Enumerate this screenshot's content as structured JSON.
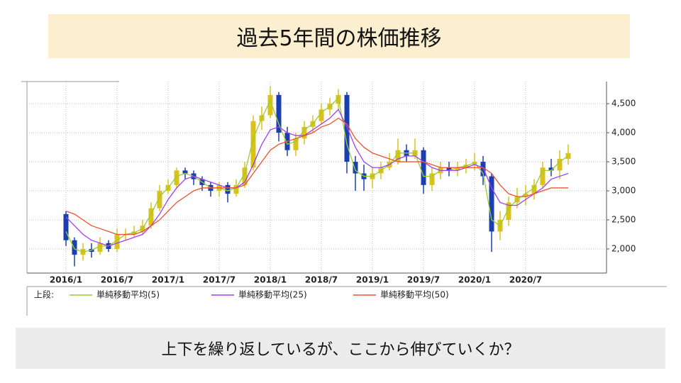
{
  "header": {
    "title": "過去5年間の株価推移"
  },
  "footer": {
    "caption": "上下を繰り返しているが、ここから伸びていくか？"
  },
  "chart_data": {
    "type": "candlestick",
    "categories": [
      "2016/1",
      null,
      null,
      null,
      null,
      null,
      "2016/7",
      null,
      null,
      null,
      null,
      null,
      "2017/1",
      null,
      null,
      null,
      null,
      null,
      "2017/7",
      null,
      null,
      null,
      null,
      null,
      "2018/1",
      null,
      null,
      null,
      null,
      null,
      "2018/7",
      null,
      null,
      null,
      null,
      null,
      "2019/1",
      null,
      null,
      null,
      null,
      null,
      "2019/7",
      null,
      null,
      null,
      null,
      null,
      "2020/1",
      null,
      null,
      null,
      null,
      null,
      "2020/7",
      null,
      null,
      null,
      null,
      null
    ],
    "candles": {
      "up_color": "#d9c21a",
      "down_color": "#1c3fae",
      "open": [
        2600,
        2150,
        1900,
        2000,
        1950,
        2100,
        2000,
        2250,
        2250,
        2300,
        2400,
        2700,
        3000,
        3100,
        3350,
        3300,
        3200,
        3100,
        3000,
        3100,
        2950,
        3100,
        3400,
        4200,
        4300,
        4650,
        4000,
        3700,
        3900,
        4100,
        4200,
        4400,
        4500,
        4650,
        3500,
        3300,
        3200,
        3300,
        3400,
        3500,
        3700,
        3600,
        3700,
        3100,
        3300,
        3400,
        3350,
        3400,
        3450,
        3500,
        3250,
        2300,
        2500,
        2800,
        2900,
        2950,
        3100,
        3400,
        3350,
        3550
      ],
      "high": [
        2650,
        2200,
        2100,
        2100,
        2200,
        2150,
        2350,
        2350,
        2400,
        2500,
        2800,
        3100,
        3200,
        3400,
        3400,
        3350,
        3250,
        3150,
        3150,
        3150,
        3200,
        3500,
        4300,
        4450,
        4800,
        4700,
        4100,
        4000,
        4200,
        4300,
        4500,
        4600,
        4750,
        4700,
        3600,
        3450,
        3400,
        3500,
        3650,
        3900,
        3800,
        3900,
        3750,
        3400,
        3500,
        3500,
        3500,
        3550,
        3650,
        3600,
        3300,
        2650,
        2900,
        3050,
        3100,
        3200,
        3500,
        3550,
        3700,
        3800
      ],
      "low": [
        2050,
        1700,
        1800,
        1850,
        1900,
        1950,
        1950,
        2150,
        2200,
        2250,
        2350,
        2650,
        2950,
        3050,
        3200,
        3100,
        3000,
        2900,
        2900,
        2800,
        2900,
        3050,
        3350,
        4050,
        4250,
        3850,
        3600,
        3600,
        3800,
        4000,
        4150,
        4300,
        4400,
        3300,
        3000,
        3000,
        3050,
        3200,
        3350,
        3450,
        3500,
        3550,
        2950,
        3000,
        3200,
        3250,
        3250,
        3300,
        3350,
        3100,
        1950,
        2150,
        2400,
        2700,
        2750,
        2850,
        3050,
        3250,
        3200,
        3450
      ],
      "close": [
        2150,
        1900,
        2000,
        1950,
        2100,
        2000,
        2250,
        2250,
        2300,
        2400,
        2700,
        3000,
        3100,
        3350,
        3300,
        3200,
        3100,
        3000,
        3100,
        2950,
        3100,
        3400,
        4200,
        4300,
        4650,
        4000,
        3700,
        3900,
        4100,
        4200,
        4400,
        4500,
        4650,
        3500,
        3300,
        3200,
        3300,
        3400,
        3500,
        3700,
        3600,
        3700,
        3100,
        3300,
        3400,
        3350,
        3400,
        3450,
        3500,
        3250,
        2300,
        2500,
        2800,
        2900,
        2950,
        3100,
        3400,
        3350,
        3550,
        3650
      ]
    },
    "series": [
      {
        "name": "単純移動平均(5)",
        "color": "#9acd32",
        "values": [
          2300,
          2000,
          1950,
          1980,
          2050,
          2050,
          2150,
          2250,
          2280,
          2350,
          2600,
          2900,
          3050,
          3250,
          3300,
          3250,
          3150,
          3050,
          3050,
          3000,
          3050,
          3300,
          3900,
          4250,
          4550,
          4150,
          3800,
          3850,
          4050,
          4150,
          4350,
          4450,
          4600,
          3800,
          3350,
          3250,
          3250,
          3350,
          3450,
          3650,
          3650,
          3650,
          3250,
          3250,
          3350,
          3350,
          3400,
          3430,
          3480,
          3300,
          2500,
          2400,
          2700,
          2850,
          2950,
          3050,
          3350,
          3350,
          3500,
          3600
        ]
      },
      {
        "name": "単純移動平均(25)",
        "color": "#a040f0",
        "values": [
          2550,
          2400,
          2250,
          2150,
          2100,
          2050,
          2100,
          2150,
          2200,
          2250,
          2400,
          2600,
          2850,
          3050,
          3200,
          3250,
          3200,
          3150,
          3100,
          3050,
          3050,
          3150,
          3450,
          3800,
          4050,
          4100,
          4000,
          3950,
          3950,
          4050,
          4150,
          4250,
          4400,
          4100,
          3750,
          3500,
          3400,
          3400,
          3450,
          3550,
          3600,
          3600,
          3500,
          3400,
          3350,
          3350,
          3350,
          3400,
          3450,
          3400,
          3050,
          2800,
          2750,
          2750,
          2850,
          2950,
          3050,
          3200,
          3250,
          3300
        ]
      },
      {
        "name": "単純移動平均(50)",
        "color": "#f05030",
        "values": [
          2650,
          2600,
          2500,
          2400,
          2350,
          2300,
          2250,
          2250,
          2250,
          2300,
          2400,
          2500,
          2650,
          2800,
          2900,
          3000,
          3050,
          3050,
          3050,
          3050,
          3050,
          3100,
          3300,
          3500,
          3700,
          3800,
          3850,
          3900,
          3950,
          4000,
          4100,
          4150,
          4250,
          4150,
          3900,
          3750,
          3650,
          3600,
          3550,
          3500,
          3500,
          3500,
          3500,
          3450,
          3400,
          3400,
          3400,
          3400,
          3400,
          3400,
          3300,
          3100,
          2950,
          2900,
          2900,
          2950,
          3000,
          3050,
          3050,
          3050
        ]
      }
    ],
    "legend_title": "上段:",
    "ylim": [
      1585,
      4880
    ],
    "yticks": [
      {
        "value": 2000,
        "label": "2,000"
      },
      {
        "value": 2500,
        "label": "2,500"
      },
      {
        "value": 3000,
        "label": "3,000"
      },
      {
        "value": 3500,
        "label": "3,500"
      },
      {
        "value": 4000,
        "label": "4,000"
      },
      {
        "value": 4500,
        "label": "4,500"
      }
    ],
    "grid": true
  }
}
